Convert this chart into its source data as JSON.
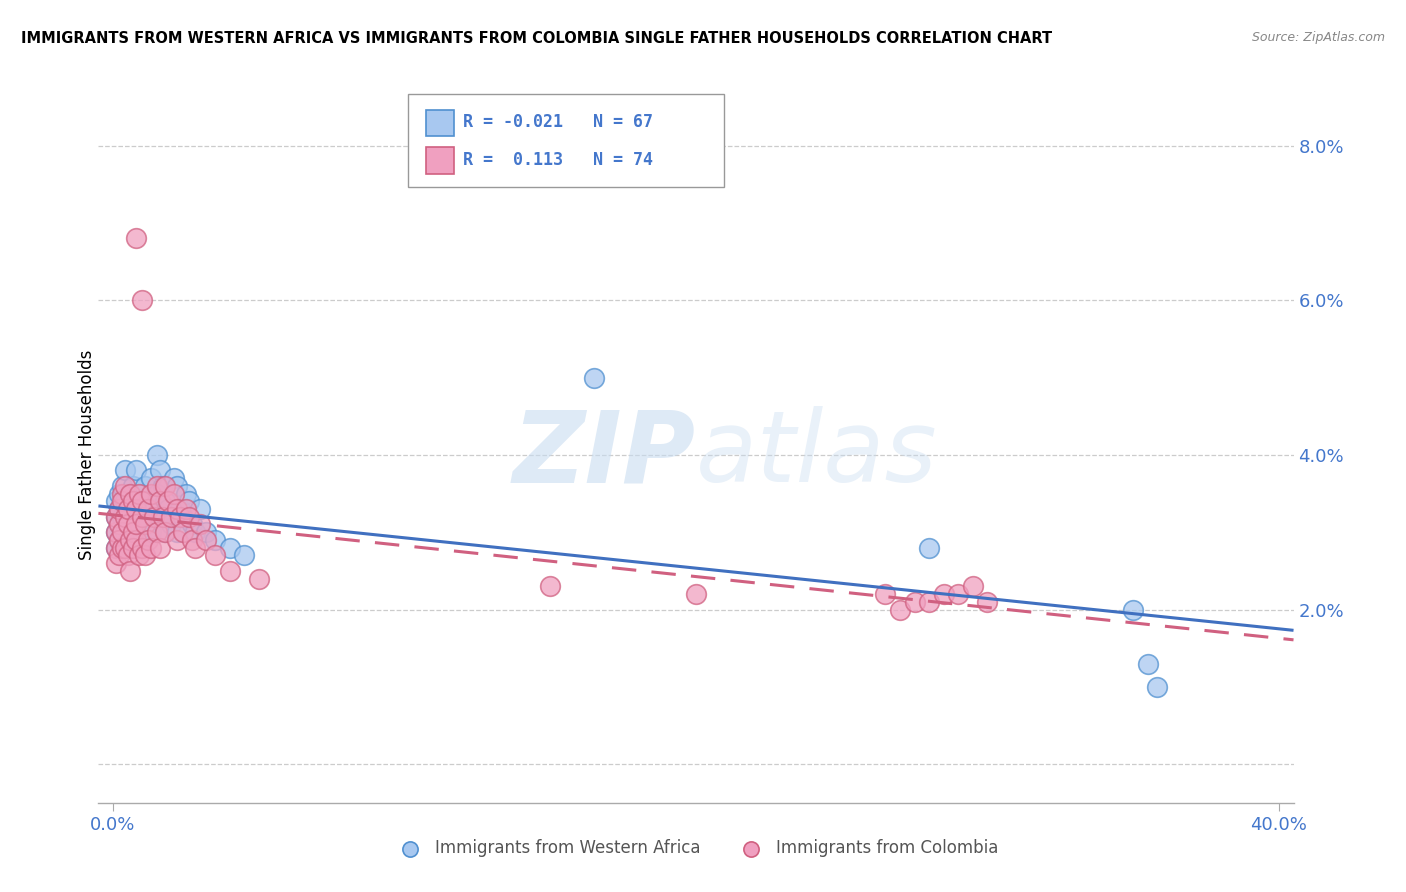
{
  "title": "IMMIGRANTS FROM WESTERN AFRICA VS IMMIGRANTS FROM COLOMBIA SINGLE FATHER HOUSEHOLDS CORRELATION CHART",
  "source": "Source: ZipAtlas.com",
  "ylabel": "Single Father Households",
  "legend_blue_R": "-0.021",
  "legend_blue_N": "67",
  "legend_pink_R": "0.113",
  "legend_pink_N": "74",
  "watermark_zip": "ZIP",
  "watermark_atlas": "atlas",
  "blue_fill": "#A8C8F0",
  "blue_edge": "#5090D0",
  "pink_fill": "#F0A0C0",
  "pink_edge": "#D06080",
  "blue_line_color": "#4070C0",
  "pink_line_color": "#D06080",
  "grid_color": "#CCCCCC",
  "tick_color": "#4477CC",
  "xmin": 0.0,
  "xmax": 0.4,
  "ymin": -0.005,
  "ymax": 0.085,
  "blue_x": [
    0.001,
    0.001,
    0.001,
    0.001,
    0.002,
    0.002,
    0.002,
    0.002,
    0.003,
    0.003,
    0.003,
    0.003,
    0.004,
    0.004,
    0.004,
    0.005,
    0.005,
    0.005,
    0.006,
    0.006,
    0.006,
    0.007,
    0.007,
    0.007,
    0.008,
    0.008,
    0.008,
    0.009,
    0.009,
    0.01,
    0.01,
    0.01,
    0.011,
    0.011,
    0.012,
    0.012,
    0.013,
    0.013,
    0.014,
    0.015,
    0.015,
    0.016,
    0.016,
    0.017,
    0.018,
    0.018,
    0.019,
    0.02,
    0.021,
    0.022,
    0.022,
    0.023,
    0.024,
    0.025,
    0.026,
    0.027,
    0.028,
    0.03,
    0.032,
    0.035,
    0.04,
    0.045,
    0.165,
    0.28,
    0.35,
    0.355,
    0.358
  ],
  "blue_y": [
    0.03,
    0.032,
    0.034,
    0.028,
    0.033,
    0.031,
    0.029,
    0.035,
    0.03,
    0.028,
    0.032,
    0.036,
    0.034,
    0.03,
    0.038,
    0.033,
    0.029,
    0.031,
    0.035,
    0.032,
    0.028,
    0.036,
    0.033,
    0.03,
    0.034,
    0.031,
    0.038,
    0.033,
    0.029,
    0.035,
    0.032,
    0.029,
    0.036,
    0.03,
    0.034,
    0.031,
    0.037,
    0.03,
    0.033,
    0.04,
    0.035,
    0.038,
    0.032,
    0.036,
    0.034,
    0.03,
    0.033,
    0.031,
    0.037,
    0.036,
    0.03,
    0.033,
    0.032,
    0.035,
    0.034,
    0.031,
    0.03,
    0.033,
    0.03,
    0.029,
    0.028,
    0.027,
    0.05,
    0.028,
    0.02,
    0.013,
    0.01
  ],
  "pink_x": [
    0.001,
    0.001,
    0.001,
    0.001,
    0.002,
    0.002,
    0.002,
    0.002,
    0.003,
    0.003,
    0.003,
    0.003,
    0.004,
    0.004,
    0.004,
    0.005,
    0.005,
    0.005,
    0.006,
    0.006,
    0.006,
    0.007,
    0.007,
    0.007,
    0.008,
    0.008,
    0.008,
    0.009,
    0.009,
    0.01,
    0.01,
    0.01,
    0.011,
    0.011,
    0.012,
    0.012,
    0.013,
    0.013,
    0.014,
    0.015,
    0.015,
    0.016,
    0.016,
    0.017,
    0.018,
    0.018,
    0.019,
    0.02,
    0.021,
    0.022,
    0.022,
    0.023,
    0.024,
    0.025,
    0.026,
    0.027,
    0.028,
    0.03,
    0.032,
    0.035,
    0.008,
    0.01,
    0.04,
    0.05,
    0.15,
    0.2,
    0.265,
    0.27,
    0.275,
    0.28,
    0.285,
    0.29,
    0.295,
    0.3
  ],
  "pink_y": [
    0.028,
    0.03,
    0.032,
    0.026,
    0.031,
    0.029,
    0.033,
    0.027,
    0.035,
    0.028,
    0.03,
    0.034,
    0.032,
    0.028,
    0.036,
    0.031,
    0.027,
    0.033,
    0.029,
    0.035,
    0.025,
    0.034,
    0.03,
    0.028,
    0.033,
    0.029,
    0.031,
    0.027,
    0.035,
    0.032,
    0.028,
    0.034,
    0.031,
    0.027,
    0.033,
    0.029,
    0.035,
    0.028,
    0.032,
    0.03,
    0.036,
    0.034,
    0.028,
    0.032,
    0.036,
    0.03,
    0.034,
    0.032,
    0.035,
    0.033,
    0.029,
    0.032,
    0.03,
    0.033,
    0.032,
    0.029,
    0.028,
    0.031,
    0.029,
    0.027,
    0.068,
    0.06,
    0.025,
    0.024,
    0.023,
    0.022,
    0.022,
    0.02,
    0.021,
    0.021,
    0.022,
    0.022,
    0.023,
    0.021
  ]
}
